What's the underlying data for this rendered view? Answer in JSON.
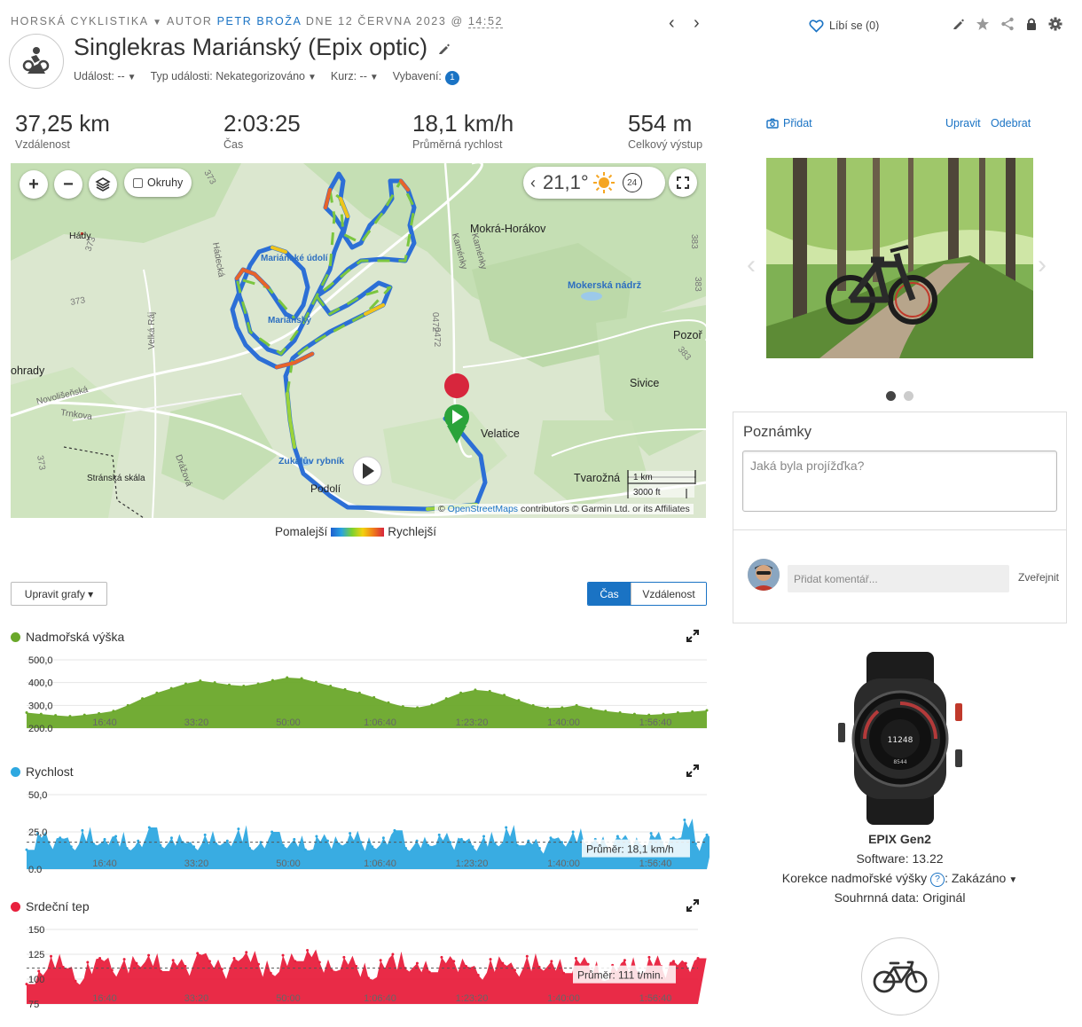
{
  "breadcrumb": {
    "category": "HORSKÁ CYKLISTIKA",
    "author_prefix": "AUTOR",
    "author": "PETR BROŽA",
    "date_prefix": "DNE 12 ČERVNA 2023 @",
    "time": "14:52"
  },
  "header": {
    "title": "Singlekras Mariánský (Epix optic)",
    "event_label": "Událost: --",
    "event_type_label": "Typ události: Nekategorizováno",
    "course_label": "Kurz: --",
    "gear_label": "Vybavení:",
    "gear_count": "1"
  },
  "actions": {
    "like_label": "Líbí se (0)"
  },
  "stats": [
    {
      "value": "37,25 km",
      "label": "Vzdálenost"
    },
    {
      "value": "2:03:25",
      "label": "Čas"
    },
    {
      "value": "18,1 km/h",
      "label": "Průměrná rychlost"
    },
    {
      "value": "554 m",
      "label": "Celkový výstup"
    }
  ],
  "map": {
    "okruhy_label": "Okruhy",
    "temperature": "21,1°",
    "hours_badge": "24",
    "place_labels": [
      "Hády",
      "Mokrá-Horákov",
      "Mokerská nádrž",
      "Pozoř",
      "Sivice",
      "Velatice",
      "Tvarožná",
      "Podolí",
      "Zukalův rybník",
      "Stránská skála",
      "Trnkova",
      "Novolišeňská",
      "ohrady",
      "Mariánské údolí",
      "Mariánský",
      "Hádecká",
      "Kaménky",
      "Kaménky",
      "Velká Ráj",
      "Drážová",
      "373",
      "373",
      "373",
      "373",
      "383",
      "383",
      "383",
      "0472",
      "0472"
    ],
    "scale_km": "1 km",
    "scale_ft": "3000 ft",
    "attribution_prefix": "©",
    "attribution_link": "OpenStreetMaps",
    "attribution_suffix": "contributors © Garmin Ltd. or its Affiliates",
    "legend_slow": "Pomalejší",
    "legend_fast": "Rychlejší"
  },
  "chart_controls": {
    "edit_label": "Upravit grafy ▾",
    "time_label": "Čas",
    "distance_label": "Vzdálenost"
  },
  "chart_data": [
    {
      "type": "area",
      "title": "Nadmořská výška",
      "color": "#6aa82a",
      "x_ticks": [
        "16:40",
        "33:20",
        "50:00",
        "1:06:40",
        "1:23:20",
        "1:40:00",
        "1:56:40"
      ],
      "y_ticks": [
        "500,0",
        "400,0",
        "300,0",
        "200,0"
      ],
      "ylim": [
        200,
        500
      ],
      "values": [
        268,
        262,
        256,
        252,
        258,
        265,
        275,
        300,
        330,
        355,
        375,
        395,
        408,
        400,
        390,
        385,
        395,
        410,
        422,
        418,
        402,
        385,
        370,
        355,
        335,
        312,
        295,
        290,
        302,
        330,
        355,
        368,
        362,
        345,
        322,
        300,
        288,
        290,
        300,
        286,
        275,
        268,
        262,
        258,
        262,
        268,
        272,
        278
      ]
    },
    {
      "type": "area",
      "title": "Rychlost",
      "color": "#2ea8e0",
      "x_ticks": [
        "16:40",
        "33:20",
        "50:00",
        "1:06:40",
        "1:23:20",
        "1:40:00",
        "1:56:40"
      ],
      "y_ticks": [
        "50,0",
        "25,0",
        "0,0"
      ],
      "ylim": [
        0,
        50
      ],
      "average_label": "Průměr: 18,1 km/h",
      "average": 18.1,
      "values": [
        13,
        24,
        18,
        21,
        15,
        26,
        17,
        20,
        22,
        14,
        19,
        28,
        16,
        21,
        18,
        15,
        23,
        17,
        19,
        27,
        14,
        18,
        25,
        16,
        20,
        13,
        22,
        19,
        17,
        24,
        18,
        15,
        21,
        26,
        14,
        19,
        16,
        23,
        18,
        20,
        15,
        22,
        17,
        28,
        16,
        19,
        14,
        21,
        18,
        25,
        17,
        20,
        15,
        22,
        19,
        16,
        24,
        18,
        21,
        33,
        17,
        23
      ]
    },
    {
      "type": "area",
      "title": "Srdeční tep",
      "color": "#e8203d",
      "x_ticks": [
        "16:40",
        "33:20",
        "50:00",
        "1:06:40",
        "1:23:20",
        "1:40:00",
        "1:56:40"
      ],
      "y_ticks": [
        "150",
        "125",
        "100",
        "75"
      ],
      "ylim": [
        75,
        150
      ],
      "average_label": "Průměr: 111 t/min.",
      "average": 111,
      "values": [
        95,
        108,
        123,
        112,
        98,
        117,
        121,
        109,
        120,
        116,
        124,
        108,
        119,
        113,
        126,
        118,
        110,
        121,
        127,
        115,
        106,
        124,
        118,
        129,
        117,
        109,
        122,
        113,
        101,
        119,
        125,
        111,
        116,
        107,
        122,
        118,
        113,
        104,
        120,
        116,
        109,
        123,
        112,
        118,
        106,
        121,
        115,
        99,
        114,
        119,
        107,
        122,
        113,
        118,
        116,
        121
      ]
    }
  ],
  "photos": {
    "add_label": "Přidat",
    "edit_label": "Upravit",
    "remove_label": "Odebrat"
  },
  "notes": {
    "title": "Poznámky",
    "placeholder": "Jaká byla projížďka?"
  },
  "comments": {
    "placeholder": "Přidat komentář...",
    "publish_label": "Zveřejnit"
  },
  "device": {
    "watch_time": "11248",
    "watch_steps": "8544",
    "name": "EPIX Gen2",
    "software": "Software: 13.22",
    "elevation_label": "Korekce nadmořské výšky",
    "elevation_value": "Zakázáno",
    "summary": "Souhrnná data: Originál"
  }
}
